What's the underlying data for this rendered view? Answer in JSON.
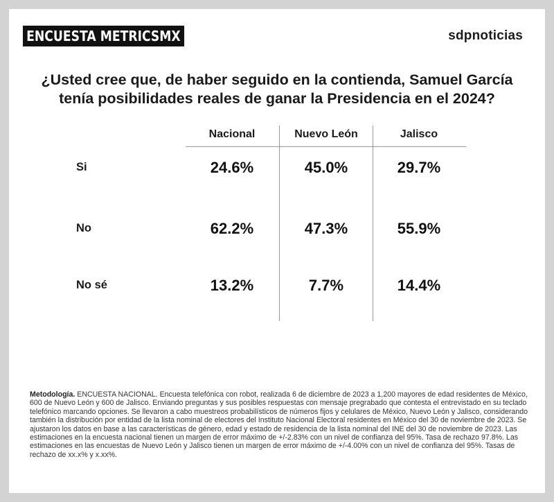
{
  "header": {
    "tag": "ENCUESTA METRICSMX",
    "publisher": "sdpnoticias"
  },
  "question": {
    "line1": "¿Usted cree que, de haber seguido en la contienda, Samuel García",
    "line2": "tenía posibilidades reales de ganar la Presidencia en el 2024?"
  },
  "chart_data": {
    "type": "table",
    "title": "¿Usted cree que, de haber seguido en la contienda, Samuel García tenía posibilidades reales de ganar la Presidencia en el 2024?",
    "columns": [
      "Nacional",
      "Nuevo León",
      "Jalisco"
    ],
    "rows": [
      {
        "label": "Si",
        "values": [
          24.6,
          45.0,
          29.7
        ],
        "display": [
          "24.6%",
          "45.0%",
          "29.7%"
        ]
      },
      {
        "label": "No",
        "values": [
          62.2,
          47.3,
          55.9
        ],
        "display": [
          "62.2%",
          "47.3%",
          "55.9%"
        ]
      },
      {
        "label": "No sé",
        "values": [
          13.2,
          7.7,
          14.4
        ],
        "display": [
          "13.2%",
          "7.7%",
          "14.4%"
        ]
      }
    ],
    "unit": "%"
  },
  "methodology": {
    "label": "Metodología.",
    "text": "ENCUESTA NACIONAL. Encuesta telefónica con robot, realizada 6 de diciembre de 2023 a 1,200 mayores de edad residentes de México, 600 de Nuevo León y 600 de Jalisco. Enviando preguntas y sus posibles respuestas con mensaje pregrabado que contesta el entrevistado en su teclado telefónico marcando opciones. Se llevaron a cabo muestreos probabilísticos de números fijos y celulares de México, Nuevo León y Jalisco, considerando también la distribución por entidad de la lista nominal de electores del Instituto Nacional Electoral residentes en México del 30 de noviembre de 2023. Se ajustaron los datos en base a las características de género, edad y estado de residencia de la lista nominal del INE del 30 de noviembre de 2023. Las estimaciones en la encuesta nacional tienen un margen de error máximo de +/-2.83% con un nivel de confianza del 95%. Tasa de rechazo 97.8%. Las estimaciones en las encuestas de Nuevo León y Jalisco tienen un margen de error máximo de +/-4.00% con un nivel de confianza del 95%. Tasas de rechazo de xx.x% y x.xx%."
  },
  "colors": {
    "background": "#d3d3d3",
    "card": "#ffffff",
    "tag_bg": "#111111",
    "text": "#111111",
    "rule": "#9a9a9a"
  }
}
